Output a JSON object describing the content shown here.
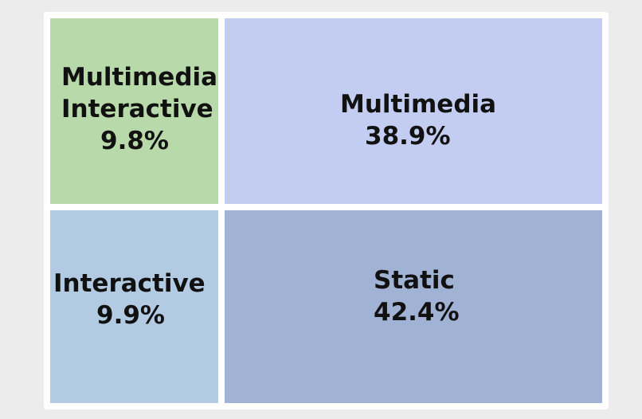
{
  "chart_data": {
    "type": "treemap",
    "title": "",
    "cells": [
      {
        "name_lines": [
          "Multimedia",
          "Interactive"
        ],
        "value_label": "9.8%",
        "value": 9.8,
        "color": "#b8d9a9"
      },
      {
        "name_lines": [
          "Multimedia"
        ],
        "value_label": "38.9%",
        "value": 38.9,
        "color": "#c2cdf1"
      },
      {
        "name_lines": [
          "Interactive"
        ],
        "value_label": "9.9%",
        "value": 9.9,
        "color": "#b2cbe3"
      },
      {
        "name_lines": [
          "Static"
        ],
        "value_label": "42.4%",
        "value": 42.4,
        "color": "#a1b3d5"
      }
    ]
  }
}
